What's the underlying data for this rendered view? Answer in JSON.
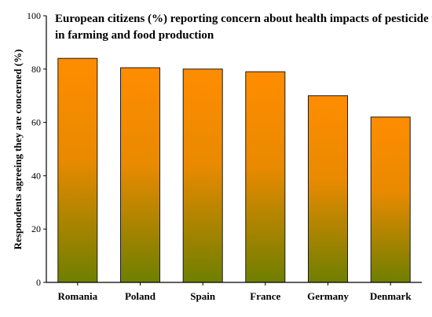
{
  "chart_data": {
    "type": "bar",
    "title_lines": [
      "European citizens (%) reporting concern about health impacts of pesticide use",
      "in farming and food production"
    ],
    "ylabel": "Respondents agreeing they are concerned (%)",
    "xlabel": "",
    "categories": [
      "Romania",
      "Poland",
      "Spain",
      "France",
      "Germany",
      "Denmark"
    ],
    "values": [
      84,
      80.5,
      80,
      79,
      70,
      62
    ],
    "ylim": [
      0,
      100
    ],
    "yticks": [
      0,
      20,
      40,
      60,
      80,
      100
    ],
    "grid": false,
    "legend": "none",
    "colors": {
      "bar_top": "#FF8C00",
      "bar_mid": "#E98A00",
      "bar_bottom": "#6F7F00",
      "bar_stroke": "#1a1a1a",
      "axis": "#000000"
    }
  }
}
